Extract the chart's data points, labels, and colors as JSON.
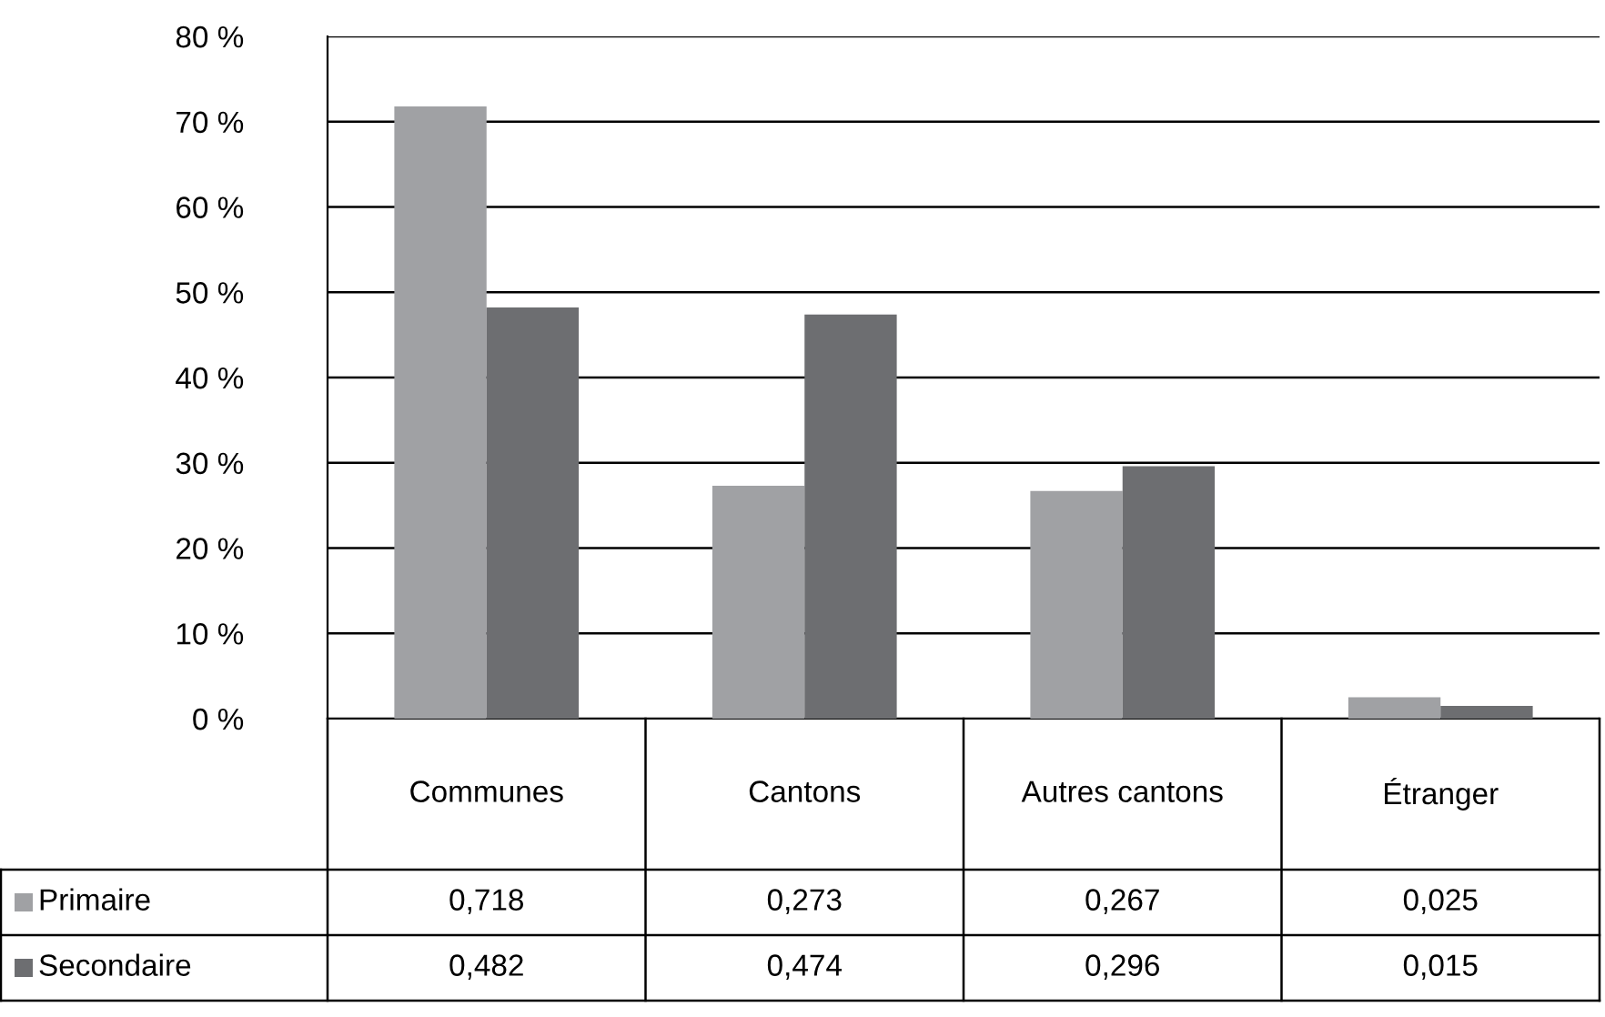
{
  "chart_data": {
    "type": "bar",
    "categories": [
      "Communes",
      "Cantons",
      "Autres cantons",
      "Étranger"
    ],
    "series": [
      {
        "name": "Primaire",
        "color": "#a0a1a4",
        "values": [
          0.718,
          0.273,
          0.267,
          0.025
        ],
        "value_labels": [
          "0,718",
          "0,273",
          "0,267",
          "0,025"
        ]
      },
      {
        "name": "Secondaire",
        "color": "#6d6e71",
        "values": [
          0.482,
          0.474,
          0.296,
          0.015
        ],
        "value_labels": [
          "0,482",
          "0,474",
          "0,296",
          "0,015"
        ]
      }
    ],
    "ylim": [
      0,
      0.8
    ],
    "yticks": [
      {
        "value": 0,
        "label": "0 %"
      },
      {
        "value": 0.1,
        "label": "10 %"
      },
      {
        "value": 0.2,
        "label": "20 %"
      },
      {
        "value": 0.3,
        "label": "30 %"
      },
      {
        "value": 0.4,
        "label": "40 %"
      },
      {
        "value": 0.5,
        "label": "50 %"
      },
      {
        "value": 0.6,
        "label": "60 %"
      },
      {
        "value": 0.7,
        "label": "70 %"
      },
      {
        "value": 0.8,
        "label": "80 %"
      }
    ],
    "grid": "y",
    "legend": "bottom left"
  }
}
